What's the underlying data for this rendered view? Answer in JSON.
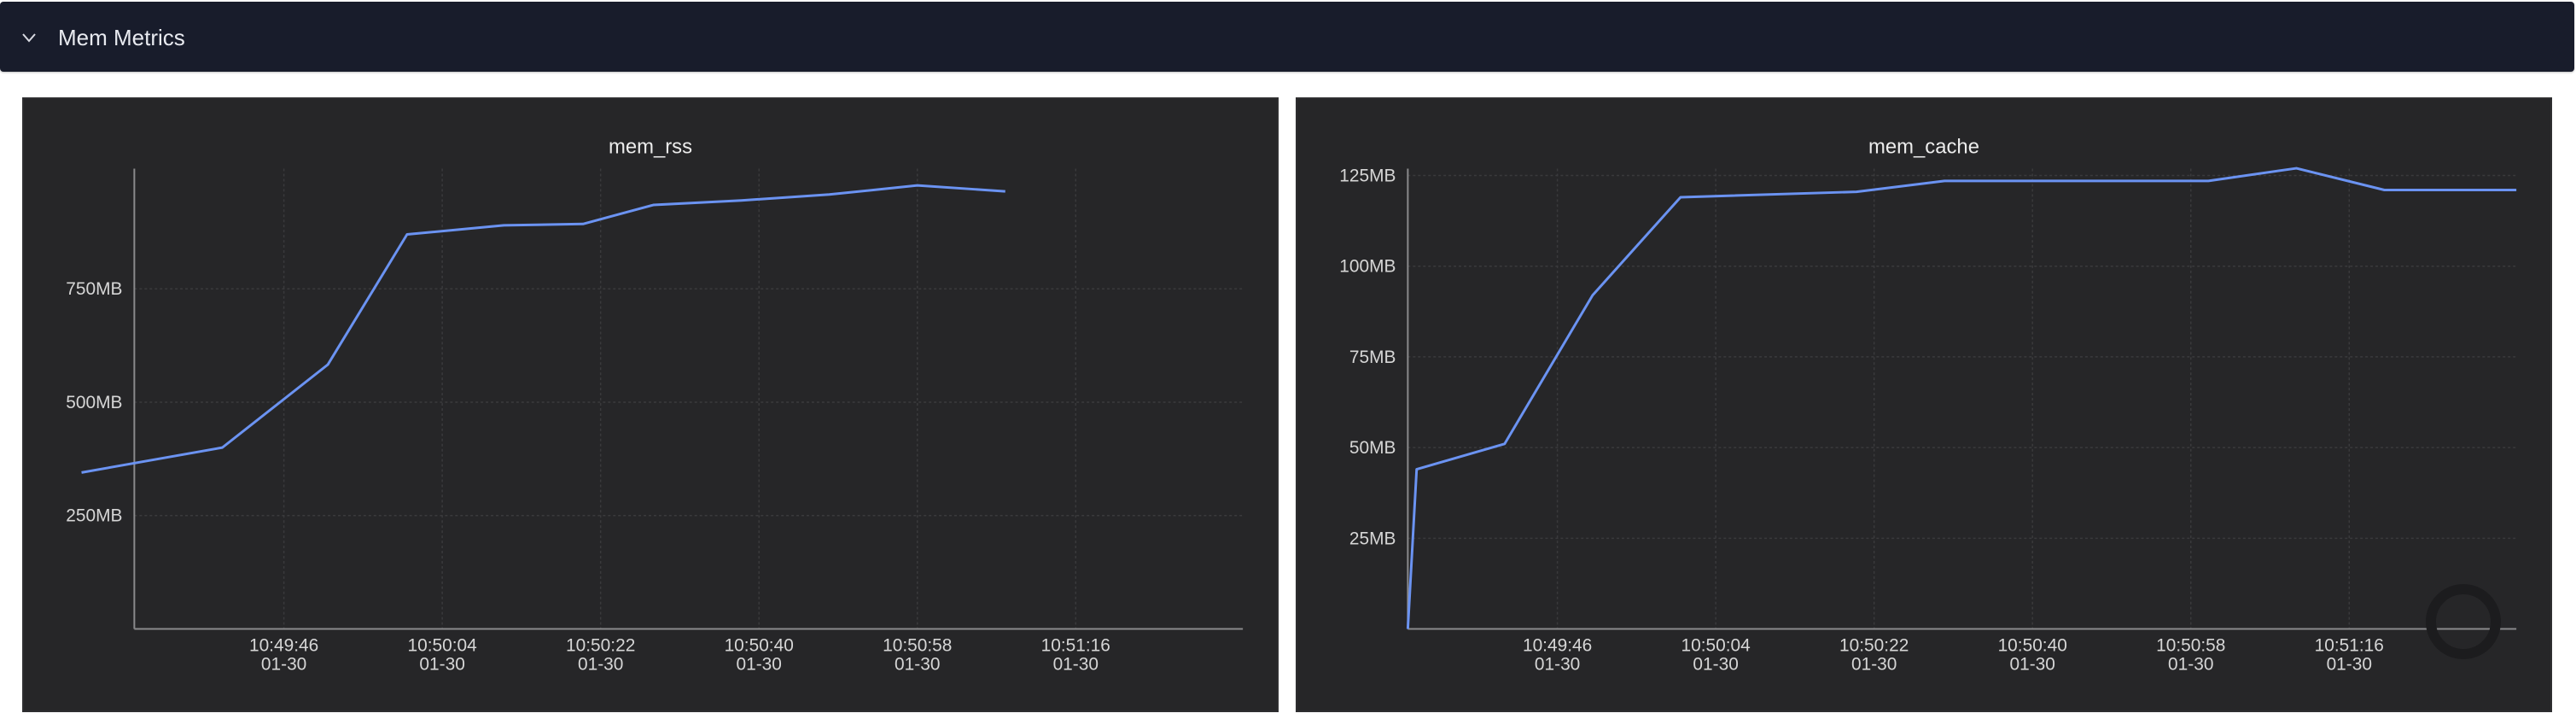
{
  "section": {
    "title": "Mem Metrics",
    "collapse_icon": "chevron-down-icon"
  },
  "colors": {
    "series": "#6b93f2",
    "header_bg": "#181c2b",
    "panel_bg": "#262628"
  },
  "chart_data": [
    {
      "type": "line",
      "title": "mem_rss",
      "x_unit": "seconds",
      "x": [
        "10:49:23",
        "10:49:39",
        "10:49:51",
        "10:50:00",
        "10:50:11",
        "10:50:20",
        "10:50:28",
        "10:50:38",
        "10:50:48",
        "10:50:58",
        "10:51:08"
      ],
      "series": [
        {
          "values": [
            345,
            400,
            583,
            870,
            890,
            893,
            935,
            945,
            958,
            978,
            965
          ]
        }
      ],
      "ylim": [
        0,
        1000
      ],
      "y_ticks": [
        250,
        500,
        750
      ],
      "y_tick_labels": [
        "250MB",
        "500MB",
        "750MB"
      ],
      "x_ticks": [
        "10:49:46",
        "10:50:04",
        "10:50:22",
        "10:50:40",
        "10:50:58",
        "10:51:16"
      ],
      "x_tick_labels": [
        [
          "10:49:46",
          "01-30"
        ],
        [
          "10:50:04",
          "01-30"
        ],
        [
          "10:50:22",
          "01-30"
        ],
        [
          "10:50:40",
          "01-30"
        ],
        [
          "10:50:58",
          "01-30"
        ],
        [
          "10:51:16",
          "01-30"
        ]
      ],
      "xlim": [
        "10:49:29",
        "10:51:35"
      ],
      "grid": true
    },
    {
      "type": "line",
      "title": "mem_cache",
      "x_unit": "seconds",
      "x": [
        "10:49:29",
        "10:49:30",
        "10:49:40",
        "10:49:50",
        "10:50:00",
        "10:50:20",
        "10:50:30",
        "10:51:00",
        "10:51:10",
        "10:51:20",
        "10:51:35"
      ],
      "series": [
        {
          "values": [
            0,
            44,
            51,
            92,
            119,
            120.5,
            123.5,
            123.5,
            127,
            121,
            121
          ]
        }
      ],
      "ylim": [
        0,
        125
      ],
      "y_ticks": [
        25,
        50,
        75,
        100,
        125
      ],
      "y_tick_labels": [
        "25MB",
        "50MB",
        "75MB",
        "100MB",
        "125MB"
      ],
      "x_ticks": [
        "10:49:46",
        "10:50:04",
        "10:50:22",
        "10:50:40",
        "10:50:58",
        "10:51:16"
      ],
      "x_tick_labels": [
        [
          "10:49:46",
          "01-30"
        ],
        [
          "10:50:04",
          "01-30"
        ],
        [
          "10:50:22",
          "01-30"
        ],
        [
          "10:50:40",
          "01-30"
        ],
        [
          "10:50:58",
          "01-30"
        ],
        [
          "10:51:16",
          "01-30"
        ]
      ],
      "xlim": [
        "10:49:29",
        "10:51:35"
      ],
      "grid": true
    }
  ]
}
